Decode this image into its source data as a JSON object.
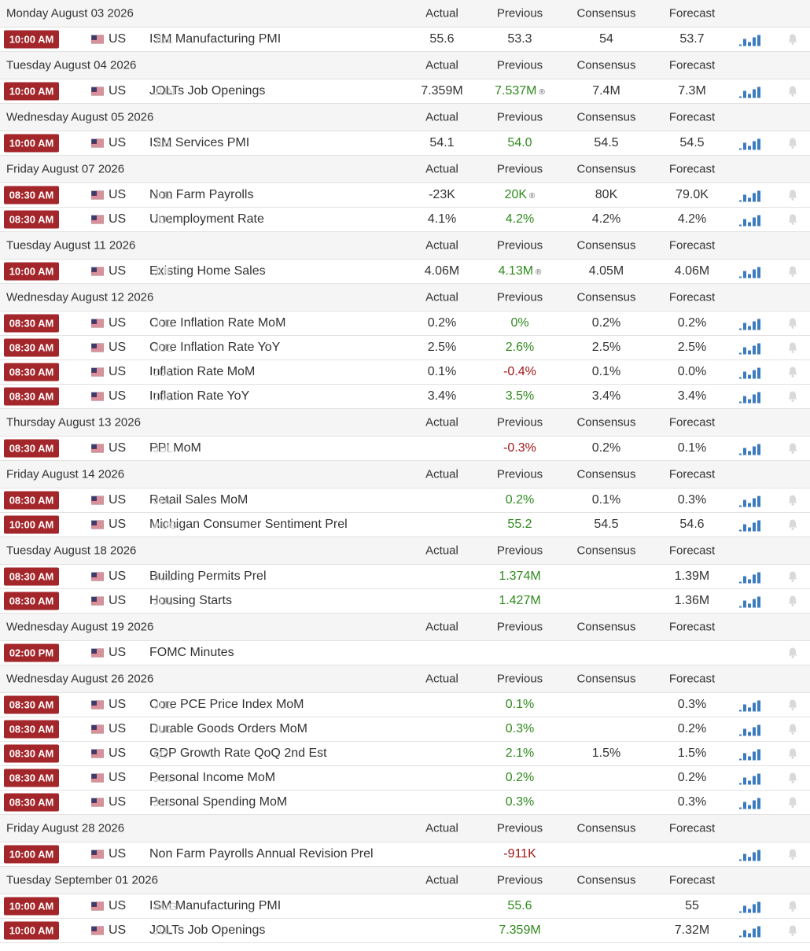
{
  "columns": [
    "Actual",
    "Previous",
    "Consensus",
    "Forecast"
  ],
  "days": [
    {
      "date": "Monday August 03 2026",
      "events": [
        {
          "time": "10:00 AM",
          "country": "US",
          "event": "ISM Manufacturing PMI",
          "period": "JUL",
          "actual": "55.6",
          "previous": "53.3",
          "previous_color": "#333333",
          "consensus": "54",
          "forecast": "53.7"
        }
      ]
    },
    {
      "date": "Tuesday August 04 2026",
      "events": [
        {
          "time": "10:00 AM",
          "country": "US",
          "event": "JOLTs Job Openings",
          "period": "JUN",
          "actual": "7.359M",
          "previous": "7.537M",
          "previous_color": "#2f8a1c",
          "previous_revised": true,
          "consensus": "7.4M",
          "forecast": "7.3M"
        }
      ]
    },
    {
      "date": "Wednesday August 05 2026",
      "events": [
        {
          "time": "10:00 AM",
          "country": "US",
          "event": "ISM Services PMI",
          "period": "JUL",
          "actual": "54.1",
          "previous": "54.0",
          "previous_color": "#2f8a1c",
          "consensus": "54.5",
          "forecast": "54.5"
        }
      ]
    },
    {
      "date": "Friday August 07 2026",
      "events": [
        {
          "time": "08:30 AM",
          "country": "US",
          "event": "Non Farm Payrolls",
          "period": "JUL",
          "actual": "-23K",
          "previous": "20K",
          "previous_color": "#2f8a1c",
          "previous_revised": true,
          "consensus": "80K",
          "forecast": "79.0K"
        },
        {
          "time": "08:30 AM",
          "country": "US",
          "event": "Unemployment Rate",
          "period": "JUL",
          "actual": "4.1%",
          "previous": "4.2%",
          "previous_color": "#2f8a1c",
          "consensus": "4.2%",
          "forecast": "4.2%"
        }
      ]
    },
    {
      "date": "Tuesday August 11 2026",
      "events": [
        {
          "time": "10:00 AM",
          "country": "US",
          "event": "Existing Home Sales",
          "period": "JUL",
          "actual": "4.06M",
          "previous": "4.13M",
          "previous_color": "#2f8a1c",
          "previous_revised": true,
          "consensus": "4.05M",
          "forecast": "4.06M"
        }
      ]
    },
    {
      "date": "Wednesday August 12 2026",
      "events": [
        {
          "time": "08:30 AM",
          "country": "US",
          "event": "Core Inflation Rate MoM",
          "period": "JUL",
          "actual": "0.2%",
          "previous": "0%",
          "previous_color": "#2f8a1c",
          "consensus": "0.2%",
          "forecast": "0.2%"
        },
        {
          "time": "08:30 AM",
          "country": "US",
          "event": "Core Inflation Rate YoY",
          "period": "JUL",
          "actual": "2.5%",
          "previous": "2.6%",
          "previous_color": "#2f8a1c",
          "consensus": "2.5%",
          "forecast": "2.5%"
        },
        {
          "time": "08:30 AM",
          "country": "US",
          "event": "Inflation Rate MoM",
          "period": "JUL",
          "actual": "0.1%",
          "previous": "-0.4%",
          "previous_color": "#a01818",
          "consensus": "0.1%",
          "forecast": "0.0%"
        },
        {
          "time": "08:30 AM",
          "country": "US",
          "event": "Inflation Rate YoY",
          "period": "JUL",
          "actual": "3.4%",
          "previous": "3.5%",
          "previous_color": "#2f8a1c",
          "consensus": "3.4%",
          "forecast": "3.4%"
        }
      ]
    },
    {
      "date": "Thursday August 13 2026",
      "events": [
        {
          "time": "08:30 AM",
          "country": "US",
          "event": "PPI MoM",
          "period": "JUL",
          "previous": "-0.3%",
          "previous_color": "#a01818",
          "consensus": "0.2%",
          "forecast": "0.1%"
        }
      ]
    },
    {
      "date": "Friday August 14 2026",
      "events": [
        {
          "time": "08:30 AM",
          "country": "US",
          "event": "Retail Sales MoM",
          "period": "JUL",
          "previous": "0.2%",
          "previous_color": "#2f8a1c",
          "consensus": "0.1%",
          "forecast": "0.3%"
        },
        {
          "time": "10:00 AM",
          "country": "US",
          "event": "Michigan Consumer Sentiment Prel",
          "period": "AUG",
          "previous": "55.2",
          "previous_color": "#2f8a1c",
          "consensus": "54.5",
          "forecast": "54.6"
        }
      ]
    },
    {
      "date": "Tuesday August 18 2026",
      "events": [
        {
          "time": "08:30 AM",
          "country": "US",
          "event": "Building Permits Prel",
          "period": "JUL",
          "previous": "1.374M",
          "previous_color": "#2f8a1c",
          "forecast": "1.39M"
        },
        {
          "time": "08:30 AM",
          "country": "US",
          "event": "Housing Starts",
          "period": "JUL",
          "previous": "1.427M",
          "previous_color": "#2f8a1c",
          "forecast": "1.36M"
        }
      ]
    },
    {
      "date": "Wednesday August 19 2026",
      "events": [
        {
          "time": "02:00 PM",
          "country": "US",
          "event": "FOMC Minutes",
          "history_chart": false
        }
      ]
    },
    {
      "date": "Wednesday August 26 2026",
      "events": [
        {
          "time": "08:30 AM",
          "country": "US",
          "event": "Core PCE Price Index MoM",
          "period": "JUL",
          "previous": "0.1%",
          "previous_color": "#2f8a1c",
          "forecast": "0.3%"
        },
        {
          "time": "08:30 AM",
          "country": "US",
          "event": "Durable Goods Orders MoM",
          "period": "JUL",
          "previous": "0.3%",
          "previous_color": "#2f8a1c",
          "forecast": "0.2%"
        },
        {
          "time": "08:30 AM",
          "country": "US",
          "event": "GDP Growth Rate QoQ 2nd Est",
          "period": "Q2",
          "previous": "2.1%",
          "previous_color": "#2f8a1c",
          "consensus": "1.5%",
          "forecast": "1.5%"
        },
        {
          "time": "08:30 AM",
          "country": "US",
          "event": "Personal Income MoM",
          "period": "JUL",
          "previous": "0.2%",
          "previous_color": "#2f8a1c",
          "forecast": "0.2%"
        },
        {
          "time": "08:30 AM",
          "country": "US",
          "event": "Personal Spending MoM",
          "period": "JUL",
          "previous": "0.3%",
          "previous_color": "#2f8a1c",
          "forecast": "0.3%"
        }
      ]
    },
    {
      "date": "Friday August 28 2026",
      "events": [
        {
          "time": "10:00 AM",
          "country": "US",
          "event": "Non Farm Payrolls Annual Revision Prel",
          "previous": "-911K",
          "previous_color": "#a01818"
        }
      ]
    },
    {
      "date": "Tuesday September 01 2026",
      "events": [
        {
          "time": "10:00 AM",
          "country": "US",
          "event": "ISM Manufacturing PMI",
          "period": "AUG",
          "previous": "55.6",
          "previous_color": "#2f8a1c",
          "forecast": "55"
        },
        {
          "time": "10:00 AM",
          "country": "US",
          "event": "JOLTs Job Openings",
          "period": "JUL",
          "previous": "7.359M",
          "previous_color": "#2f8a1c",
          "forecast": "7.32M"
        }
      ]
    }
  ]
}
